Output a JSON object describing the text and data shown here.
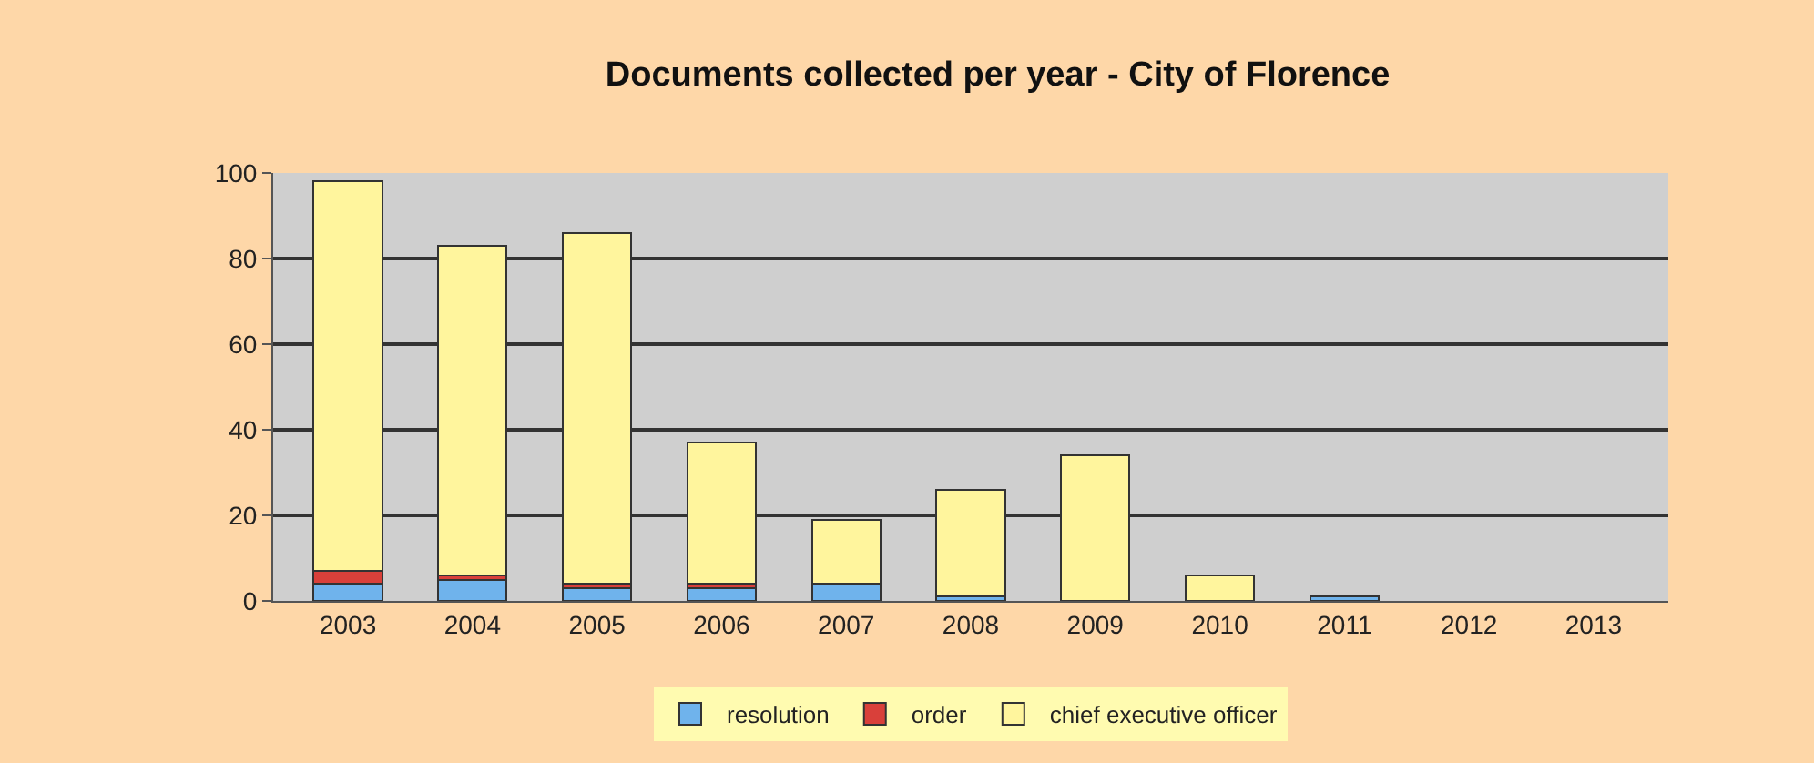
{
  "chart_data": {
    "type": "bar",
    "title": "Documents collected per year - City of Florence",
    "stacked": true,
    "categories": [
      "2003",
      "2004",
      "2005",
      "2006",
      "2007",
      "2008",
      "2009",
      "2010",
      "2011",
      "2012",
      "2013"
    ],
    "series": [
      {
        "name": "resolution",
        "color": "#6fb3ec",
        "values": [
          4,
          5,
          3,
          3,
          4,
          1,
          0,
          0,
          1,
          0,
          0
        ]
      },
      {
        "name": "order",
        "color": "#d9403a",
        "values": [
          3,
          1,
          1,
          1,
          0,
          0,
          0,
          0,
          0,
          0,
          0
        ]
      },
      {
        "name": "chief executive officer",
        "color": "#fff59d",
        "values": [
          91,
          77,
          82,
          33,
          15,
          25,
          34,
          6,
          0,
          0,
          0
        ]
      }
    ],
    "ylim": [
      0,
      100
    ],
    "yticks": [
      0,
      20,
      40,
      60,
      80,
      100
    ],
    "grid": "y",
    "legend": "bottom"
  }
}
